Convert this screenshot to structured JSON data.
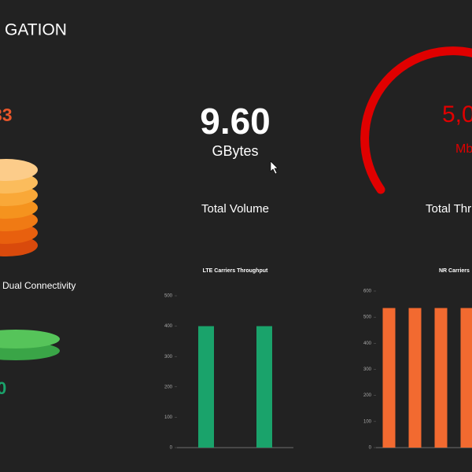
{
  "header": {
    "title": "GATION"
  },
  "widgets": {
    "top_left_value": "33",
    "volume": {
      "value": "9.60",
      "unit": "GBytes",
      "label": "Total Volume"
    },
    "throughput": {
      "value": "5,0",
      "unit": "Mb",
      "label": "Total Thr"
    },
    "dual_connectivity": {
      "label": "Dual Connectivity",
      "value": "0"
    }
  },
  "chart_data": [
    {
      "type": "bar",
      "title": "LTE Carriers Throughput",
      "categories": [
        null,
        null
      ],
      "values": [
        400,
        400
      ],
      "color": "#1aa36b",
      "ylim": [
        0,
        500
      ],
      "yticks": [
        0,
        100,
        200,
        300,
        400,
        500
      ]
    },
    {
      "type": "bar",
      "title": "NR Carriers",
      "categories": [
        null,
        null,
        null,
        null
      ],
      "values": [
        535,
        535,
        535,
        535
      ],
      "color": "#f26a30",
      "ylim": [
        0,
        600
      ],
      "yticks": [
        0,
        100,
        200,
        300,
        400,
        500,
        600
      ]
    }
  ]
}
